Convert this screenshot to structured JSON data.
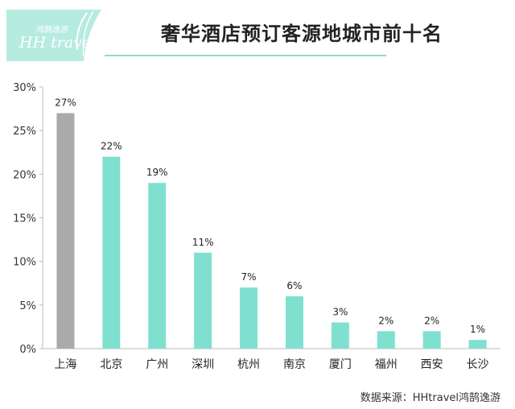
{
  "logo": {
    "subtitle": "鸿鹄逸游",
    "name": "HH travel"
  },
  "page_title": "奢华酒店预订客源地城市前十名",
  "source_note": "数据来源：HHtravel鸿鹄逸游",
  "colors": {
    "highlight_bar": "#aaaaaa",
    "bar": "#7fe0d0",
    "logo_bg": "#b6ebe0",
    "title_rule": "#88ddcc"
  },
  "chart_data": {
    "type": "bar",
    "title": "奢华酒店预订客源地城市前十名",
    "categories": [
      "上海",
      "北京",
      "广州",
      "深圳",
      "杭州",
      "南京",
      "厦门",
      "福州",
      "西安",
      "长沙"
    ],
    "values": [
      27,
      22,
      19,
      11,
      7,
      6,
      3,
      2,
      2,
      1
    ],
    "value_labels": [
      "27%",
      "22%",
      "19%",
      "11%",
      "7%",
      "6%",
      "3%",
      "2%",
      "2%",
      "1%"
    ],
    "y_ticks": [
      0,
      5,
      10,
      15,
      20,
      25,
      30
    ],
    "y_tick_labels": [
      "0%",
      "5%",
      "10%",
      "15%",
      "20%",
      "25%",
      "30%"
    ],
    "ylim": [
      0,
      30
    ],
    "highlight_index": 0,
    "grid": false,
    "xlabel": "",
    "ylabel": ""
  }
}
